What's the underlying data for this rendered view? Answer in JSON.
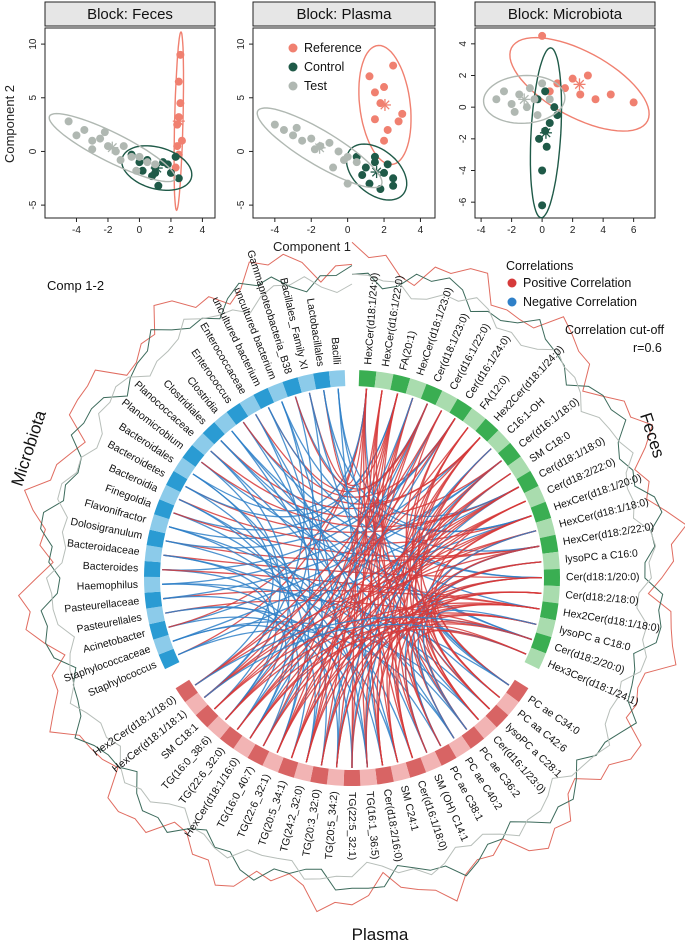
{
  "colors": {
    "reference": "#f08070",
    "control": "#1f5a48",
    "test": "#b0b8b2",
    "positive": "#d63a3a",
    "negative": "#2f80c8",
    "microbiota_dark": "#2a9bd3",
    "microbiota_light": "#8ccbea",
    "feces_dark": "#3aae52",
    "feces_light": "#a9dcae",
    "plasma_dark": "#d86464",
    "plasma_light": "#f2b4b4"
  },
  "scatter": {
    "xlabel": "Component 1",
    "ylabel": "Component 2",
    "legend": [
      "Reference",
      "Control",
      "Test"
    ],
    "panels": [
      {
        "title": "Block: Feces",
        "xticks": [
          -4,
          -2,
          0,
          2,
          4
        ],
        "yticks": [
          -5,
          0,
          5,
          10
        ],
        "xlim": [
          -6,
          4.8
        ],
        "ylim": [
          -6.2,
          11.5
        ]
      },
      {
        "title": "Block: Plasma",
        "xticks": [
          -4,
          -2,
          0,
          2,
          4
        ],
        "yticks": [
          -5,
          0,
          5,
          10
        ],
        "xlim": [
          -5.2,
          4.8
        ],
        "ylim": [
          -6.2,
          11.5
        ]
      },
      {
        "title": "Block: Microbiota",
        "xticks": [
          -4,
          -2,
          0,
          2,
          4,
          6
        ],
        "yticks": [
          -6,
          -4,
          -2,
          0,
          2,
          4
        ],
        "xlim": [
          -4.4,
          7.4
        ],
        "ylim": [
          -7,
          5
        ]
      }
    ]
  },
  "chart_data": [
    {
      "type": "scatter",
      "title": "Block: Feces",
      "xlabel": "Component 1",
      "ylabel": "Component 2",
      "xlim": [
        -6,
        4.8
      ],
      "ylim": [
        -6.2,
        11.5
      ],
      "series": [
        {
          "name": "Reference",
          "x": [
            2.5,
            2.6,
            2.4,
            2.7,
            2.5,
            2.3,
            2.6,
            2.4,
            2.5
          ],
          "y": [
            6.5,
            4.5,
            2.5,
            1.0,
            -0.3,
            -1.5,
            9.0,
            0.5,
            3.2
          ]
        },
        {
          "name": "Control",
          "x": [
            -0.5,
            0.0,
            0.5,
            1.0,
            1.5,
            2.0,
            2.3,
            0.8,
            1.2,
            1.8,
            2.5,
            0.2,
            1.0
          ],
          "y": [
            -0.3,
            -1.0,
            -0.8,
            -1.5,
            -1.0,
            -2.0,
            -0.5,
            -2.3,
            -3.2,
            -1.2,
            -2.5,
            -1.8,
            -2.0
          ]
        },
        {
          "name": "Test",
          "x": [
            -4.5,
            -4.0,
            -3.5,
            -3.0,
            -2.5,
            -2.0,
            -1.5,
            -1.0,
            -0.5,
            0.0,
            0.5,
            1.0,
            -3.0,
            -2.2,
            -1.2,
            -0.2
          ],
          "y": [
            2.8,
            1.5,
            2.0,
            1.0,
            1.2,
            0.5,
            0.0,
            0.5,
            -0.5,
            -0.5,
            -1.0,
            -1.2,
            0.2,
            1.8,
            -0.8,
            -1.8
          ]
        }
      ]
    },
    {
      "type": "scatter",
      "title": "Block: Plasma",
      "xlabel": "Component 1",
      "ylabel": "Component 2",
      "xlim": [
        -5.2,
        4.8
      ],
      "ylim": [
        -6.2,
        11.5
      ],
      "series": [
        {
          "name": "Reference",
          "x": [
            1.2,
            1.5,
            2.0,
            2.5,
            3.0,
            2.2,
            1.8,
            2.8,
            1.5,
            2.0
          ],
          "y": [
            7.0,
            5.5,
            6.0,
            8.0,
            3.5,
            2.0,
            4.5,
            2.8,
            3.0,
            1.0
          ]
        },
        {
          "name": "Control",
          "x": [
            0.5,
            1.0,
            1.5,
            2.0,
            2.5,
            1.2,
            1.8,
            2.2,
            0.8,
            1.5,
            2.5
          ],
          "y": [
            -0.5,
            -1.5,
            -1.0,
            -2.0,
            -2.5,
            -3.0,
            -3.5,
            -1.2,
            -2.2,
            -0.5,
            -3.2
          ]
        },
        {
          "name": "Test",
          "x": [
            -4.0,
            -3.5,
            -3.0,
            -2.5,
            -2.0,
            -1.5,
            -1.0,
            -0.5,
            0.0,
            0.5,
            -2.8,
            -1.8,
            -0.8,
            0.0,
            -0.2
          ],
          "y": [
            2.5,
            2.0,
            1.5,
            1.0,
            1.2,
            0.5,
            0.8,
            0.0,
            -0.5,
            -1.0,
            2.2,
            0.2,
            -1.5,
            -3.0,
            -0.8
          ]
        }
      ]
    },
    {
      "type": "scatter",
      "title": "Block: Microbiota",
      "xlabel": "",
      "ylabel": "",
      "xlim": [
        -4.4,
        7.4
      ],
      "ylim": [
        -7,
        5
      ],
      "series": [
        {
          "name": "Reference",
          "x": [
            0.0,
            1.0,
            2.5,
            3.5,
            4.5,
            6.0,
            1.5,
            2.0,
            3.0,
            0.5
          ],
          "y": [
            4.5,
            1.5,
            0.8,
            0.5,
            0.8,
            0.3,
            1.2,
            1.8,
            2.0,
            1.0
          ]
        },
        {
          "name": "Control",
          "x": [
            0.0,
            0.0,
            -0.2,
            0.2,
            0.5,
            1.0,
            0.8,
            0.2,
            -0.3,
            0.3
          ],
          "y": [
            -6.2,
            -4.0,
            -2.0,
            -1.5,
            -1.0,
            -0.5,
            0.0,
            1.0,
            0.5,
            -2.5
          ]
        },
        {
          "name": "Test",
          "x": [
            -3.0,
            -2.5,
            -2.0,
            -1.5,
            -1.0,
            -0.5,
            0.0,
            0.5,
            -1.8,
            -0.8,
            -0.3
          ],
          "y": [
            0.5,
            1.0,
            0.2,
            0.8,
            0.0,
            0.5,
            1.5,
            0.5,
            -0.3,
            1.2,
            -0.5
          ]
        }
      ]
    },
    {
      "type": "circos",
      "title": "Comp 1-2",
      "legend": [
        "Positive Correlation",
        "Negative Correlation"
      ],
      "legend_title": "Correlations",
      "cutoff_label": "Correlation cut-off",
      "cutoff": "r=0.6",
      "blocks": [
        "Microbiota",
        "Feces",
        "Plasma"
      ]
    }
  ],
  "circos": {
    "comp_label": "Comp 1-2",
    "legend_title": "Correlations",
    "legend_positive": "Positive Correlation",
    "legend_negative": "Negative Correlation",
    "cutoff_label": "Correlation cut-off",
    "cutoff_value": "r=0.6",
    "block_microbiota": "Microbiota",
    "block_feces": "Feces",
    "block_plasma": "Plasma",
    "feces_labels": [
      "HexCer(d18:1/24:0)",
      "HexCer(d16:1/22:0)",
      "FA(20:1)",
      "HexCer(d18:1/23:0)",
      "Cer(d18:1/23:0)",
      "Cer(d16:1/22:0)",
      "Cer(d16:1/24:0)",
      "FA(12:0)",
      "Hex2Cer(d18:1/24:0)",
      "C16:1-OH",
      "Cer(d16:1/18:0)",
      "SM C18:0",
      "Cer(d18:1/18:0)",
      "Cer(d18:2/22:0)",
      "HexCer(d18:1/20:0)",
      "HexCer(d18:1/18:0)",
      "HexCer(d18:2/22:0)",
      "lysoPC a C16:0",
      "Cer(d18:1/20:0)",
      "Cer(d18:2/18:0)",
      "Hex2Cer(d18:1/18:0)",
      "lysoPC a C18:0",
      "Cer(d18:2/20:0)",
      "Hex3Cer(d18:1/24:1)"
    ],
    "plasma_labels": [
      "PC ae C34:0",
      "PC aa C42:6",
      "lysoPC a C28:1",
      "Cer(d16:1/23:0)",
      "PC ae C36:2",
      "PC ae C40:2",
      "PC ae C38:1",
      "SM (OH) C14:1",
      "Cer(d16:1/18:0)",
      "SM C24:1",
      "Cer(d18:2/16:0)",
      "TG(16:1_36:5)",
      "TG(22:5_32:1)",
      "TG(20:5_34:2)",
      "TG(20:3_32:0)",
      "TG(24:2_32:0)",
      "TG(20:5_34:1)",
      "TG(22:6_32:1)",
      "TG(16:0_40:7)",
      "HexCer(d18:1/16:0)",
      "TG(22:6_32:0)",
      "TG(16:0_38:6)",
      "SM C18:1",
      "HexCer(d18:1/18:1)",
      "Hex2Cer(d18:1/18:0)"
    ],
    "microbiota_labels": [
      "Bacilli",
      "Lactobacillales",
      "Bacillales_Family XI",
      "Gammaproteobacteria_B38",
      "uncultured bacterium",
      "uncultured bacterium",
      "Enterococcaceae",
      "Enterococcus",
      "Clostridia",
      "Clostridiales",
      "Planococcaceae",
      "Planomicrobium",
      "Bacteroidales",
      "Bacteroidetes",
      "Bacteroidia",
      "Finegoldia",
      "Flavonifractor",
      "Dolosigranulum",
      "Bacteroidaceae",
      "Bacteroides",
      "Haemophilus",
      "Pasteurellaceae",
      "Pasteurellales",
      "Acinetobacter",
      "Staphylococcaceae",
      "Staphylococcus"
    ]
  }
}
